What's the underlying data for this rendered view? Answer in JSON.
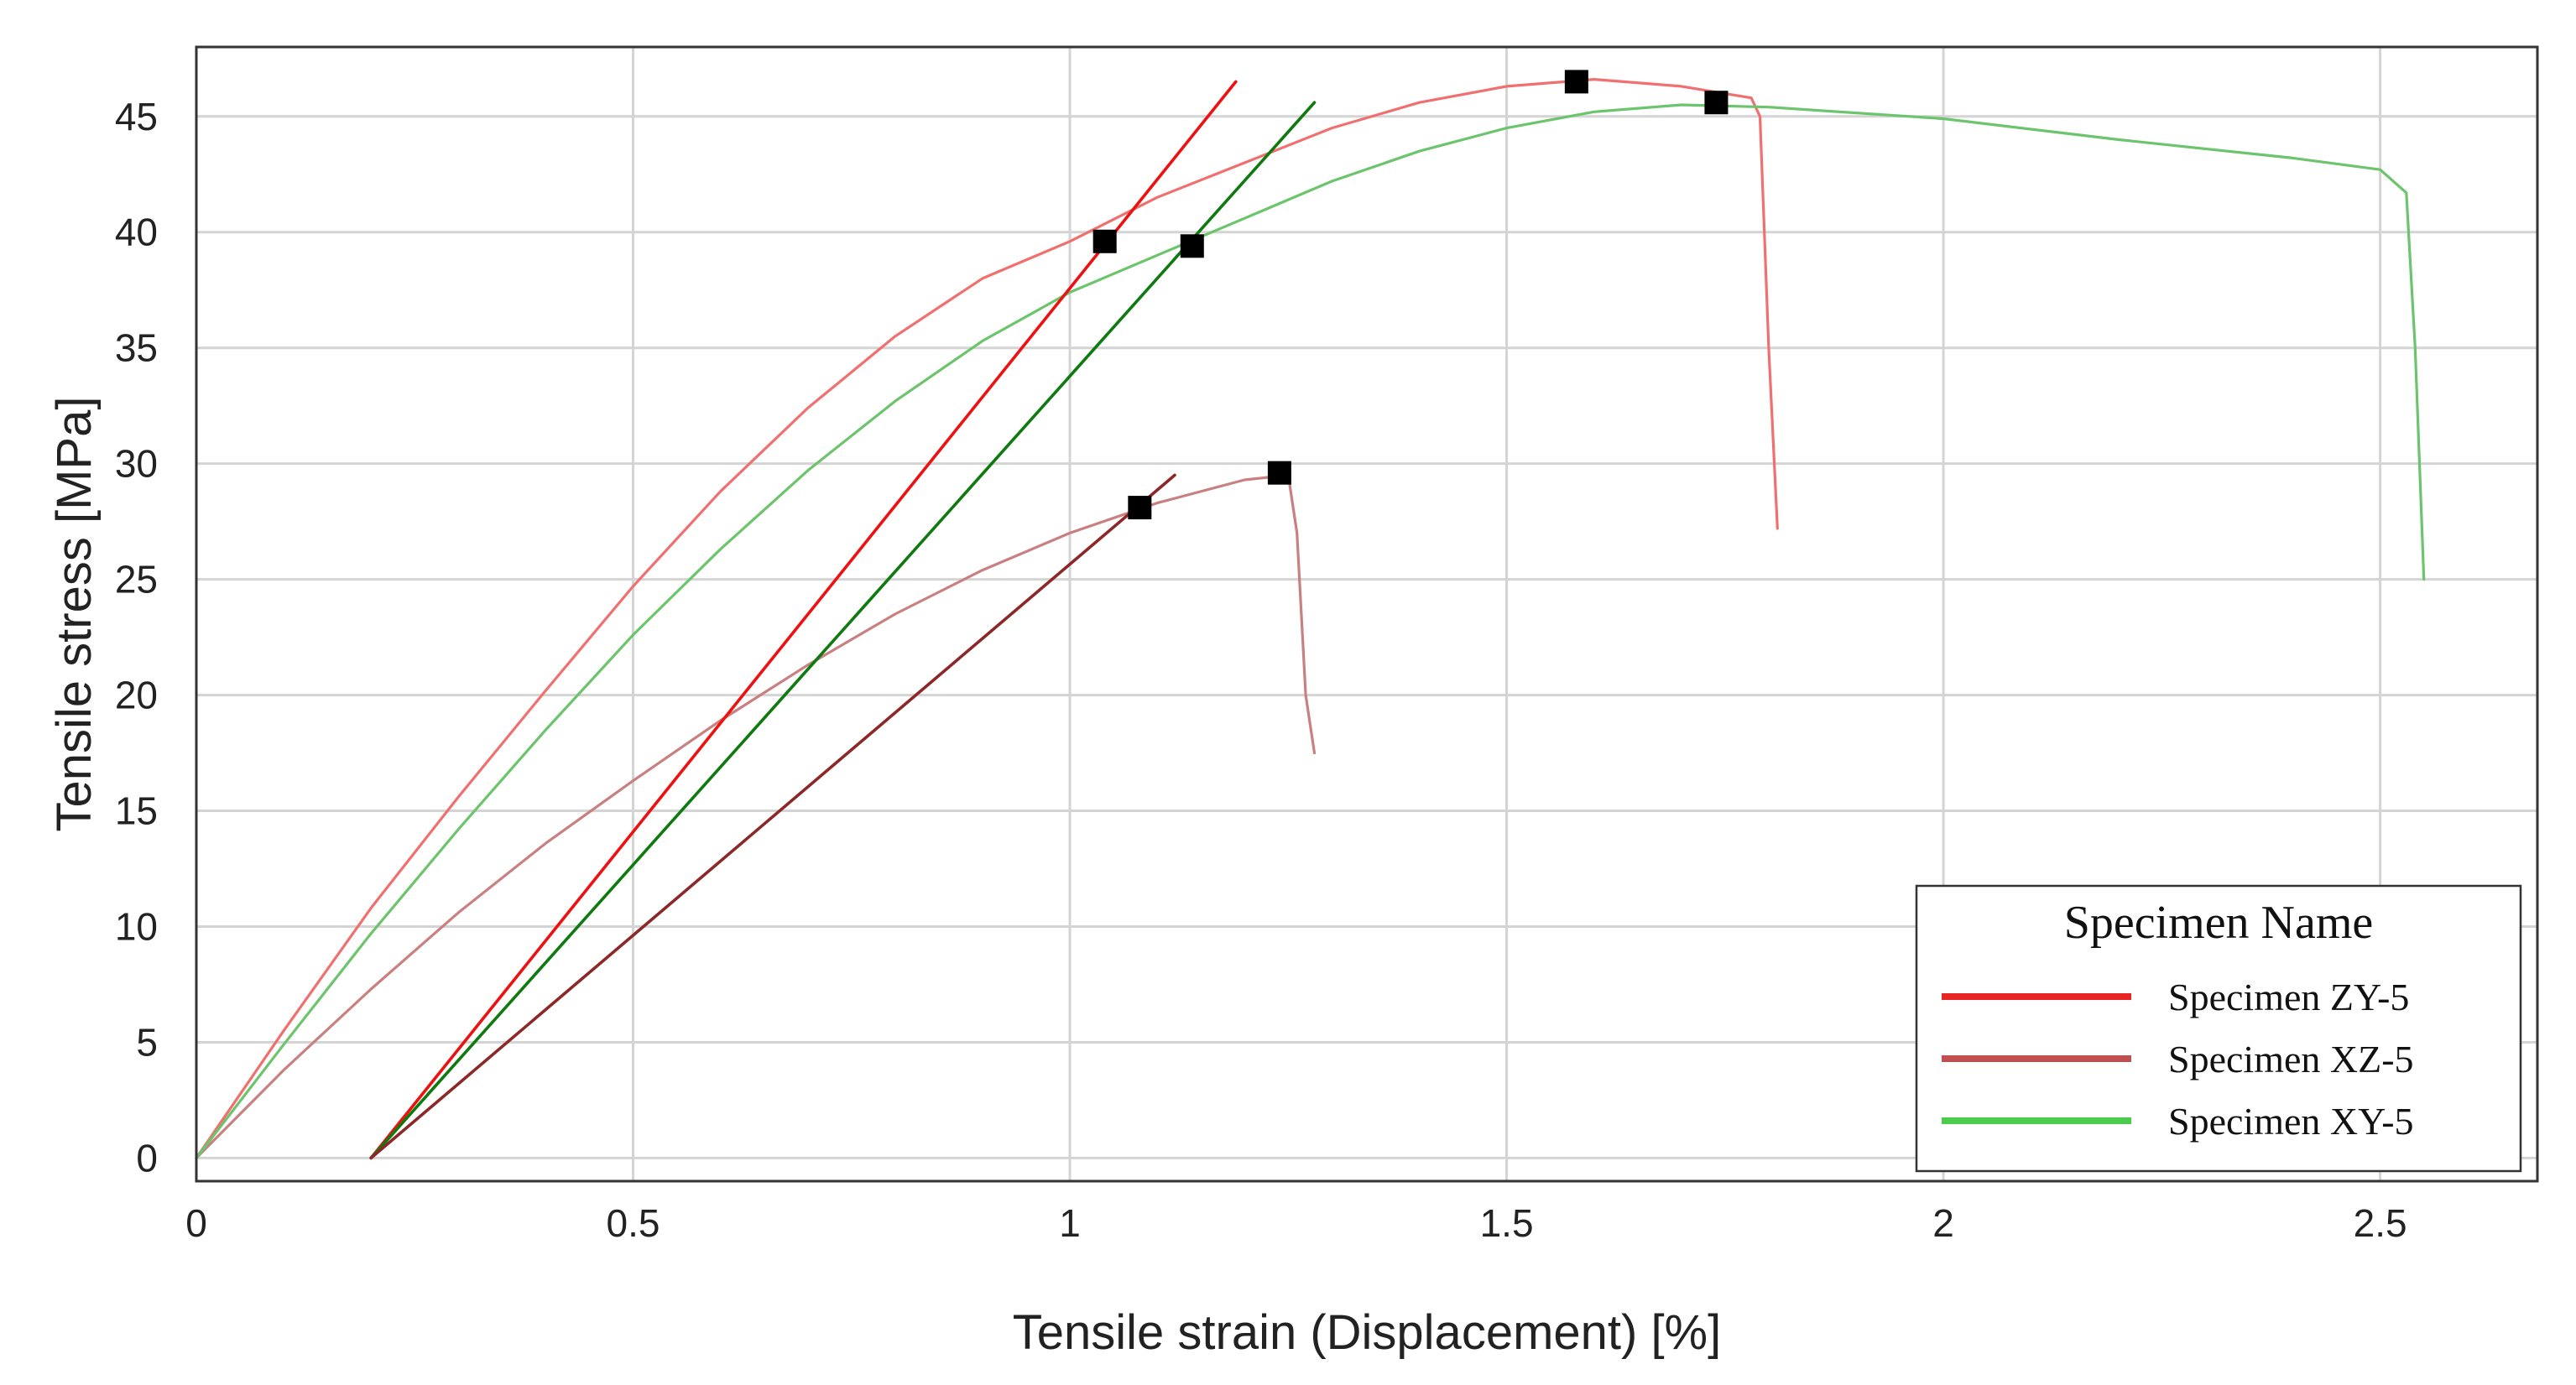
{
  "chart_data": {
    "type": "line",
    "xlabel": "Tensile strain (Displacement) [%]",
    "ylabel": "Tensile stress [MPa]",
    "xlim": [
      0,
      2.68
    ],
    "ylim": [
      -1,
      48
    ],
    "x_ticks": [
      0,
      0.5,
      1,
      1.5,
      2,
      2.5
    ],
    "x_tick_labels": [
      "0",
      "0.5",
      "1",
      "1.5",
      "2",
      "2.5"
    ],
    "y_ticks": [
      0,
      5,
      10,
      15,
      20,
      25,
      30,
      35,
      40,
      45
    ],
    "y_tick_labels": [
      "0",
      "5",
      "10",
      "15",
      "20",
      "25",
      "30",
      "35",
      "40",
      "45"
    ],
    "grid": true,
    "legend": {
      "title": "Specimen Name",
      "position": "bottom-right",
      "entries": [
        {
          "label": "Specimen ZY-5",
          "color": "#e82424"
        },
        {
          "label": "Specimen XZ-5",
          "color": "#c0504f"
        },
        {
          "label": "Specimen XY-5",
          "color": "#4ccc4c"
        }
      ]
    },
    "series": [
      {
        "name": "Specimen ZY-5",
        "color": "#f07070",
        "points": [
          [
            0,
            0
          ],
          [
            0.1,
            5.5
          ],
          [
            0.2,
            10.8
          ],
          [
            0.3,
            15.6
          ],
          [
            0.4,
            20.2
          ],
          [
            0.5,
            24.7
          ],
          [
            0.6,
            28.8
          ],
          [
            0.7,
            32.4
          ],
          [
            0.8,
            35.5
          ],
          [
            0.9,
            38.0
          ],
          [
            1.0,
            39.6
          ],
          [
            1.1,
            41.5
          ],
          [
            1.2,
            43.0
          ],
          [
            1.3,
            44.5
          ],
          [
            1.4,
            45.6
          ],
          [
            1.5,
            46.3
          ],
          [
            1.6,
            46.6
          ],
          [
            1.7,
            46.3
          ],
          [
            1.78,
            45.8
          ],
          [
            1.79,
            45.0
          ],
          [
            1.8,
            35.0
          ],
          [
            1.81,
            27.2
          ]
        ]
      },
      {
        "name": "Specimen XZ-5",
        "color": "#c98080",
        "points": [
          [
            0,
            0
          ],
          [
            0.1,
            3.8
          ],
          [
            0.2,
            7.3
          ],
          [
            0.3,
            10.6
          ],
          [
            0.4,
            13.6
          ],
          [
            0.5,
            16.3
          ],
          [
            0.6,
            18.9
          ],
          [
            0.7,
            21.3
          ],
          [
            0.8,
            23.5
          ],
          [
            0.9,
            25.4
          ],
          [
            1.0,
            27.0
          ],
          [
            1.1,
            28.3
          ],
          [
            1.2,
            29.3
          ],
          [
            1.25,
            29.5
          ],
          [
            1.26,
            27.0
          ],
          [
            1.27,
            20.0
          ],
          [
            1.28,
            17.5
          ]
        ]
      },
      {
        "name": "Specimen XY-5",
        "color": "#6cc46c",
        "points": [
          [
            0,
            0
          ],
          [
            0.1,
            4.9
          ],
          [
            0.2,
            9.7
          ],
          [
            0.3,
            14.2
          ],
          [
            0.4,
            18.5
          ],
          [
            0.5,
            22.6
          ],
          [
            0.6,
            26.3
          ],
          [
            0.7,
            29.7
          ],
          [
            0.8,
            32.7
          ],
          [
            0.9,
            35.3
          ],
          [
            1.0,
            37.4
          ],
          [
            1.1,
            39.0
          ],
          [
            1.2,
            40.6
          ],
          [
            1.3,
            42.2
          ],
          [
            1.4,
            43.5
          ],
          [
            1.5,
            44.5
          ],
          [
            1.6,
            45.2
          ],
          [
            1.7,
            45.5
          ],
          [
            1.8,
            45.4
          ],
          [
            2.0,
            44.9
          ],
          [
            2.2,
            44.0
          ],
          [
            2.4,
            43.2
          ],
          [
            2.5,
            42.7
          ],
          [
            2.53,
            41.7
          ],
          [
            2.54,
            35.0
          ],
          [
            2.55,
            25.0
          ]
        ]
      },
      {
        "name": "",
        "color": "#ee1111",
        "width": 3.6,
        "points": [
          [
            0.2,
            0
          ],
          [
            1.19,
            46.5
          ]
        ]
      },
      {
        "name": "",
        "color": "#0f7a0f",
        "width": 3.6,
        "points": [
          [
            0.2,
            0
          ],
          [
            1.28,
            45.6
          ]
        ]
      },
      {
        "name": "",
        "color": "#8c2828",
        "width": 3.6,
        "points": [
          [
            0.2,
            0
          ],
          [
            1.12,
            29.5
          ]
        ]
      }
    ],
    "markers": [
      {
        "x": 1.04,
        "y": 39.6
      },
      {
        "x": 1.14,
        "y": 39.4
      },
      {
        "x": 1.58,
        "y": 46.5
      },
      {
        "x": 1.74,
        "y": 45.6
      },
      {
        "x": 1.08,
        "y": 28.1
      },
      {
        "x": 1.24,
        "y": 29.6
      }
    ]
  }
}
